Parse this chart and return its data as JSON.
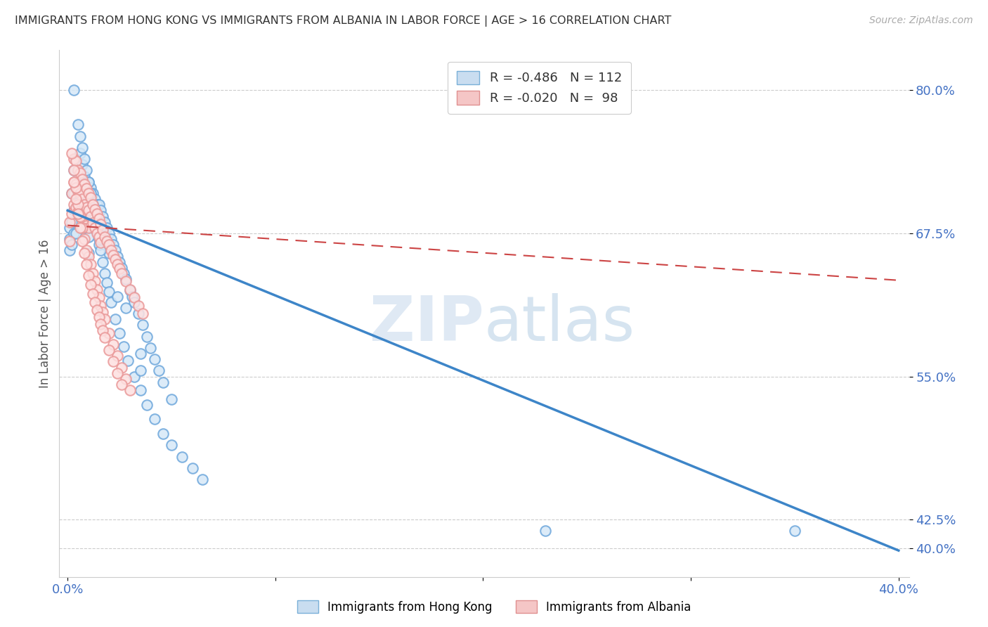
{
  "title": "IMMIGRANTS FROM HONG KONG VS IMMIGRANTS FROM ALBANIA IN LABOR FORCE | AGE > 16 CORRELATION CHART",
  "source": "Source: ZipAtlas.com",
  "ylabel": "In Labor Force | Age > 16",
  "watermark": "ZIPatlas",
  "hk_color": "#6fa8dc",
  "alb_color": "#ea9999",
  "hk_line_color": "#3d85c8",
  "alb_line_color": "#cc4444",
  "background_color": "#ffffff",
  "grid_color": "#cccccc",
  "title_color": "#333333",
  "axis_color": "#4472c4",
  "xlim": [
    -0.004,
    0.405
  ],
  "ylim": [
    0.375,
    0.835
  ],
  "ytick_vals": [
    0.4,
    0.425,
    0.55,
    0.675,
    0.8
  ],
  "ytick_labels": [
    "40.0%",
    "42.5%",
    "55.0%",
    "67.5%",
    "80.0%"
  ],
  "xtick_vals": [
    0.0,
    0.1,
    0.2,
    0.3,
    0.4
  ],
  "xtick_labels": [
    "0.0%",
    "",
    "",
    "",
    "40.0%"
  ],
  "hk_line_x0": 0.0,
  "hk_line_y0": 0.695,
  "hk_line_x1": 0.4,
  "hk_line_y1": 0.398,
  "alb_line_x0": 0.0,
  "alb_line_y0": 0.682,
  "alb_line_x1": 0.4,
  "alb_line_y1": 0.634,
  "hk_scatter_x": [
    0.001,
    0.001,
    0.001,
    0.002,
    0.002,
    0.002,
    0.003,
    0.003,
    0.003,
    0.003,
    0.004,
    0.004,
    0.004,
    0.004,
    0.005,
    0.005,
    0.005,
    0.006,
    0.006,
    0.006,
    0.007,
    0.007,
    0.007,
    0.007,
    0.008,
    0.008,
    0.008,
    0.009,
    0.009,
    0.009,
    0.01,
    0.01,
    0.01,
    0.01,
    0.01,
    0.011,
    0.011,
    0.012,
    0.012,
    0.013,
    0.013,
    0.014,
    0.014,
    0.015,
    0.015,
    0.015,
    0.016,
    0.016,
    0.017,
    0.017,
    0.018,
    0.018,
    0.019,
    0.02,
    0.02,
    0.021,
    0.022,
    0.023,
    0.024,
    0.025,
    0.026,
    0.027,
    0.028,
    0.03,
    0.031,
    0.032,
    0.034,
    0.036,
    0.038,
    0.04,
    0.042,
    0.044,
    0.046,
    0.05,
    0.003,
    0.005,
    0.006,
    0.007,
    0.008,
    0.009,
    0.01,
    0.011,
    0.012,
    0.013,
    0.014,
    0.015,
    0.016,
    0.017,
    0.018,
    0.019,
    0.02,
    0.021,
    0.023,
    0.025,
    0.027,
    0.029,
    0.032,
    0.035,
    0.038,
    0.042,
    0.046,
    0.05,
    0.055,
    0.06,
    0.065,
    0.024,
    0.028,
    0.035,
    0.035,
    0.23,
    0.35
  ],
  "hk_scatter_y": [
    0.68,
    0.67,
    0.66,
    0.71,
    0.685,
    0.665,
    0.73,
    0.71,
    0.695,
    0.675,
    0.74,
    0.715,
    0.695,
    0.675,
    0.73,
    0.71,
    0.695,
    0.745,
    0.72,
    0.7,
    0.735,
    0.715,
    0.7,
    0.68,
    0.725,
    0.705,
    0.685,
    0.72,
    0.7,
    0.68,
    0.72,
    0.705,
    0.688,
    0.672,
    0.658,
    0.715,
    0.695,
    0.71,
    0.69,
    0.705,
    0.685,
    0.7,
    0.68,
    0.7,
    0.682,
    0.665,
    0.695,
    0.675,
    0.69,
    0.67,
    0.685,
    0.665,
    0.68,
    0.675,
    0.658,
    0.67,
    0.665,
    0.66,
    0.655,
    0.65,
    0.645,
    0.64,
    0.635,
    0.625,
    0.62,
    0.615,
    0.605,
    0.595,
    0.585,
    0.575,
    0.565,
    0.555,
    0.545,
    0.53,
    0.8,
    0.77,
    0.76,
    0.75,
    0.74,
    0.73,
    0.72,
    0.71,
    0.7,
    0.69,
    0.68,
    0.67,
    0.66,
    0.65,
    0.64,
    0.632,
    0.624,
    0.615,
    0.6,
    0.588,
    0.576,
    0.564,
    0.55,
    0.538,
    0.525,
    0.513,
    0.5,
    0.49,
    0.48,
    0.47,
    0.46,
    0.62,
    0.61,
    0.57,
    0.555,
    0.415,
    0.415
  ],
  "alb_scatter_x": [
    0.001,
    0.001,
    0.002,
    0.002,
    0.003,
    0.003,
    0.003,
    0.004,
    0.004,
    0.004,
    0.005,
    0.005,
    0.005,
    0.006,
    0.006,
    0.006,
    0.007,
    0.007,
    0.007,
    0.008,
    0.008,
    0.008,
    0.009,
    0.009,
    0.009,
    0.01,
    0.01,
    0.01,
    0.011,
    0.011,
    0.012,
    0.012,
    0.013,
    0.013,
    0.014,
    0.014,
    0.015,
    0.015,
    0.016,
    0.016,
    0.017,
    0.018,
    0.019,
    0.02,
    0.021,
    0.022,
    0.023,
    0.024,
    0.025,
    0.026,
    0.028,
    0.03,
    0.032,
    0.034,
    0.036,
    0.002,
    0.003,
    0.004,
    0.005,
    0.006,
    0.007,
    0.008,
    0.009,
    0.01,
    0.011,
    0.012,
    0.013,
    0.014,
    0.015,
    0.016,
    0.017,
    0.018,
    0.02,
    0.022,
    0.024,
    0.026,
    0.028,
    0.03,
    0.003,
    0.004,
    0.005,
    0.006,
    0.007,
    0.008,
    0.009,
    0.01,
    0.011,
    0.012,
    0.013,
    0.014,
    0.015,
    0.016,
    0.017,
    0.018,
    0.02,
    0.022,
    0.024,
    0.026
  ],
  "alb_scatter_y": [
    0.685,
    0.668,
    0.71,
    0.692,
    0.74,
    0.72,
    0.7,
    0.738,
    0.718,
    0.698,
    0.73,
    0.712,
    0.694,
    0.728,
    0.71,
    0.692,
    0.722,
    0.705,
    0.688,
    0.718,
    0.7,
    0.683,
    0.714,
    0.698,
    0.682,
    0.71,
    0.695,
    0.68,
    0.706,
    0.69,
    0.7,
    0.684,
    0.696,
    0.68,
    0.692,
    0.675,
    0.688,
    0.672,
    0.683,
    0.667,
    0.678,
    0.672,
    0.668,
    0.665,
    0.66,
    0.656,
    0.652,
    0.648,
    0.644,
    0.64,
    0.633,
    0.626,
    0.619,
    0.612,
    0.605,
    0.745,
    0.73,
    0.715,
    0.7,
    0.69,
    0.68,
    0.67,
    0.66,
    0.655,
    0.648,
    0.64,
    0.633,
    0.626,
    0.619,
    0.612,
    0.606,
    0.6,
    0.588,
    0.578,
    0.568,
    0.558,
    0.548,
    0.538,
    0.72,
    0.705,
    0.692,
    0.68,
    0.668,
    0.658,
    0.648,
    0.638,
    0.63,
    0.622,
    0.615,
    0.608,
    0.602,
    0.596,
    0.59,
    0.584,
    0.573,
    0.563,
    0.553,
    0.543
  ]
}
